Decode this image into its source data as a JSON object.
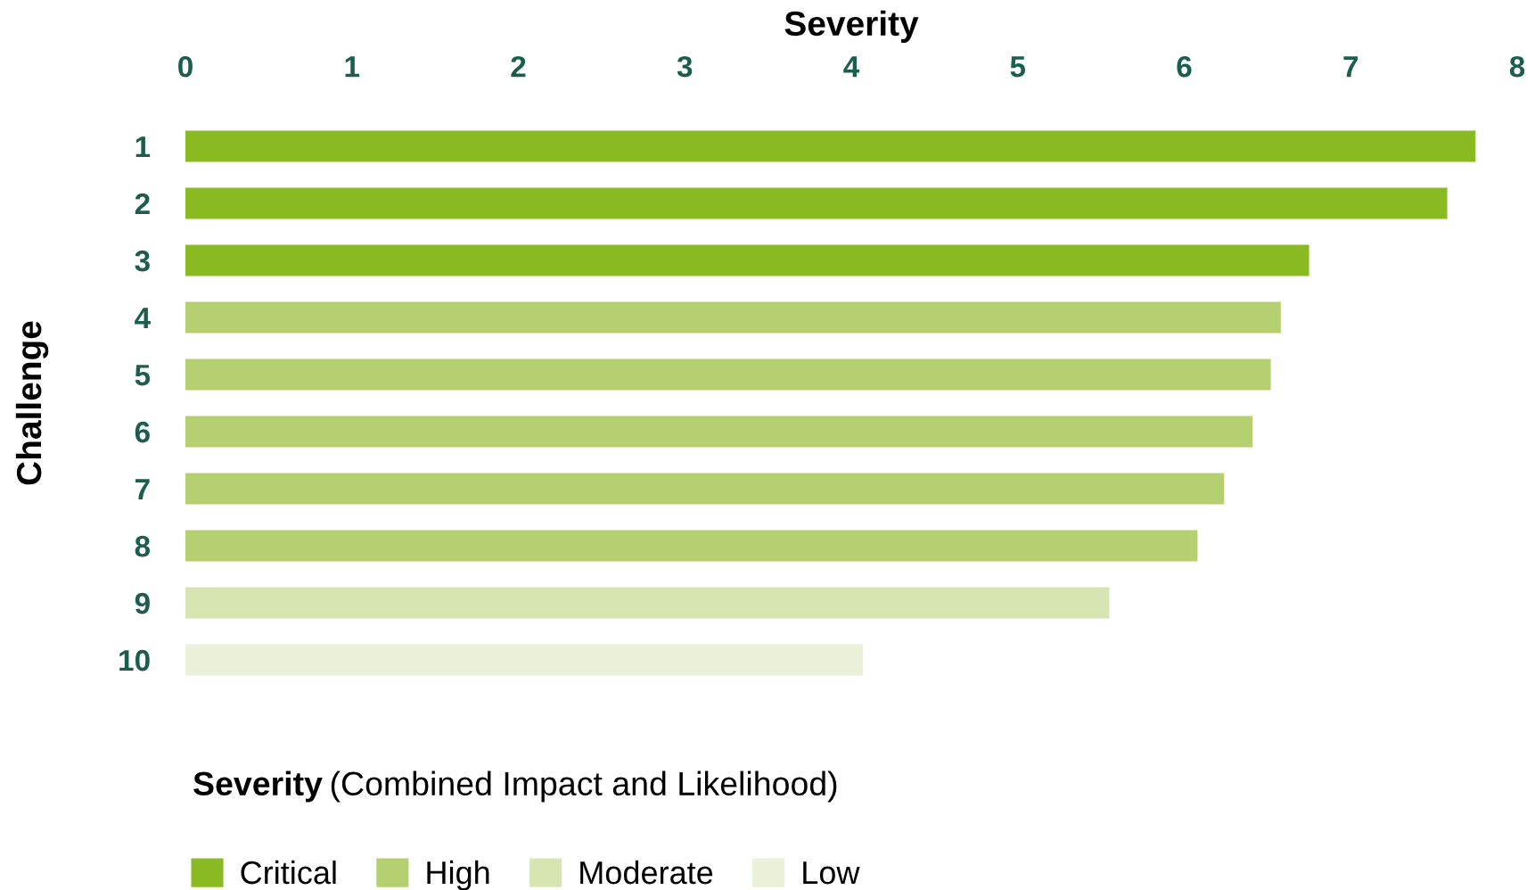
{
  "chart_data": {
    "type": "bar",
    "orientation": "horizontal",
    "xlabel": "Severity",
    "ylabel": "Challenge",
    "legend_title": "Severity (Combined Impact and Likelihood)",
    "categories": [
      "1",
      "2",
      "3",
      "4",
      "5",
      "6",
      "7",
      "8",
      "9",
      "10"
    ],
    "series": [
      {
        "name": "Critical",
        "color": "#8aba21",
        "values": [
          7.75,
          7.58,
          6.75,
          null,
          null,
          null,
          null,
          null,
          null,
          null
        ]
      },
      {
        "name": "High",
        "color": "#b4d070",
        "values": [
          null,
          null,
          null,
          6.58,
          6.52,
          6.41,
          6.24,
          6.08,
          null,
          null
        ]
      },
      {
        "name": "Moderate",
        "color": "#d7e5b3",
        "values": [
          null,
          null,
          null,
          null,
          null,
          null,
          null,
          null,
          5.55,
          null
        ]
      },
      {
        "name": "Low",
        "color": "#eaf1d9",
        "values": [
          null,
          null,
          null,
          null,
          null,
          null,
          null,
          null,
          null,
          4.07
        ]
      }
    ],
    "xlim": [
      0,
      8
    ],
    "xticks": [
      0,
      1,
      2,
      3,
      4,
      5,
      6,
      7,
      8
    ],
    "grid": false,
    "legend": "bottom left"
  }
}
